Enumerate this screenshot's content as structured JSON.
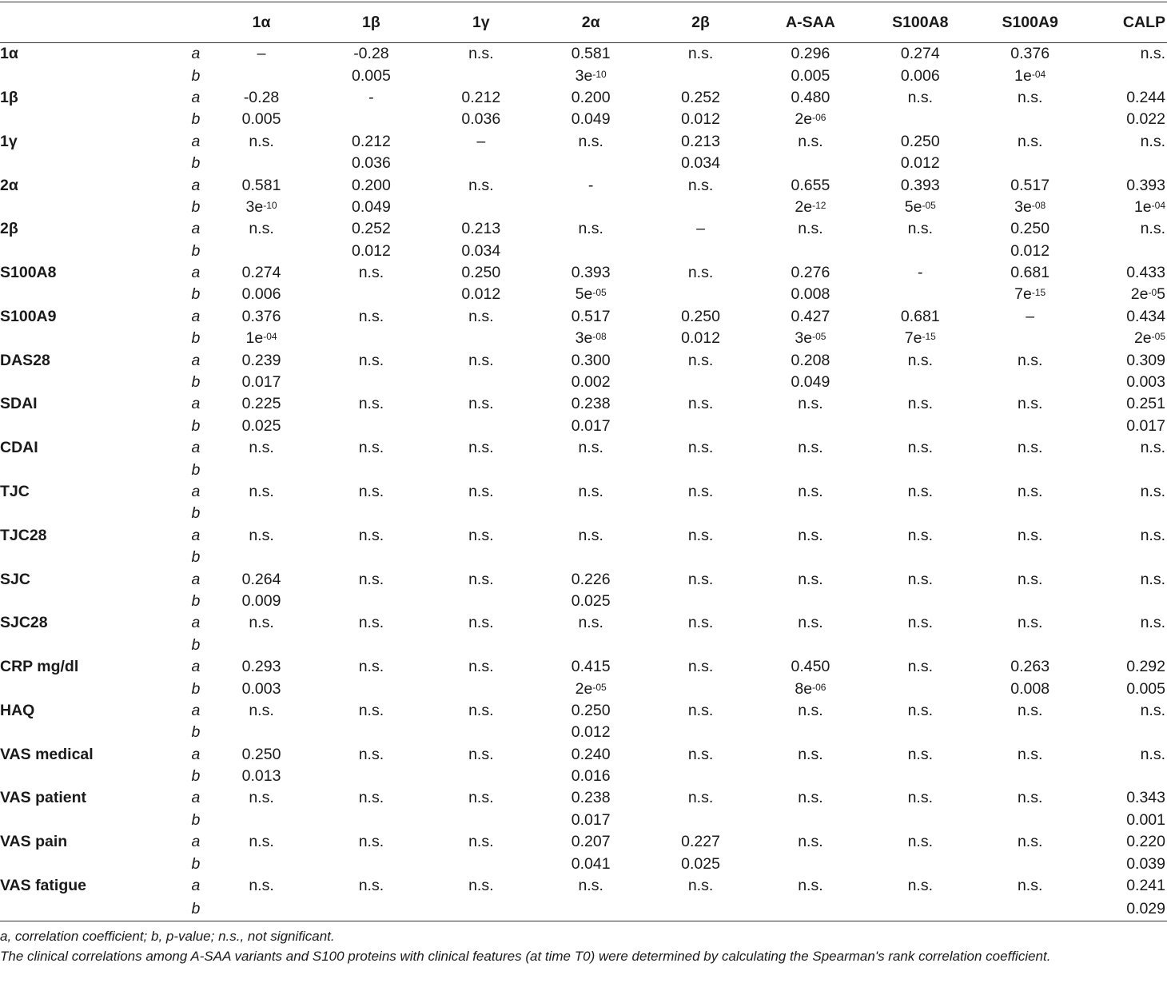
{
  "columns": [
    "1α",
    "1β",
    "1γ",
    "2α",
    "2β",
    "A-SAA",
    "S100A8",
    "S100A9",
    "CALP"
  ],
  "row_sub_labels": {
    "a": "a",
    "b": "b"
  },
  "rows": [
    {
      "label": "1α",
      "a": [
        "–",
        "-0.28",
        "n.s.",
        "0.581",
        "n.s.",
        "0.296",
        "0.274",
        "0.376",
        "n.s."
      ],
      "b": [
        {
          "v": ""
        },
        {
          "v": "0.005"
        },
        {
          "v": ""
        },
        {
          "v": "3e",
          "sup": "-10"
        },
        {
          "v": ""
        },
        {
          "v": "0.005"
        },
        {
          "v": "0.006"
        },
        {
          "v": "1e",
          "sup": "-04"
        },
        {
          "v": ""
        }
      ]
    },
    {
      "label": "1β",
      "a": [
        "-0.28",
        "-",
        "0.212",
        "0.200",
        "0.252",
        "0.480",
        "n.s.",
        "n.s.",
        "0.244"
      ],
      "b": [
        {
          "v": "0.005"
        },
        {
          "v": ""
        },
        {
          "v": "0.036"
        },
        {
          "v": "0.049"
        },
        {
          "v": "0.012"
        },
        {
          "v": "2e",
          "sup": "-06"
        },
        {
          "v": ""
        },
        {
          "v": ""
        },
        {
          "v": "0.022"
        }
      ]
    },
    {
      "label": "1γ",
      "a": [
        "n.s.",
        "0.212",
        "–",
        "n.s.",
        "0.213",
        "n.s.",
        "0.250",
        "n.s.",
        "n.s."
      ],
      "b": [
        {
          "v": ""
        },
        {
          "v": "0.036"
        },
        {
          "v": ""
        },
        {
          "v": ""
        },
        {
          "v": "0.034"
        },
        {
          "v": ""
        },
        {
          "v": "0.012"
        },
        {
          "v": ""
        },
        {
          "v": ""
        }
      ]
    },
    {
      "label": "2α",
      "a": [
        "0.581",
        "0.200",
        "n.s.",
        "-",
        "n.s.",
        "0.655",
        "0.393",
        "0.517",
        "0.393"
      ],
      "b": [
        {
          "v": "3e",
          "sup": "-10"
        },
        {
          "v": "0.049"
        },
        {
          "v": ""
        },
        {
          "v": ""
        },
        {
          "v": ""
        },
        {
          "v": "2e",
          "sup": "-12"
        },
        {
          "v": "5e",
          "sup": "-05"
        },
        {
          "v": "3e",
          "sup": "-08"
        },
        {
          "v": "1e",
          "sup": "-04"
        }
      ]
    },
    {
      "label": "2β",
      "a": [
        "n.s.",
        "0.252",
        "0.213",
        "n.s.",
        "–",
        "n.s.",
        "n.s.",
        "0.250",
        "n.s."
      ],
      "b": [
        {
          "v": ""
        },
        {
          "v": "0.012"
        },
        {
          "v": "0.034"
        },
        {
          "v": ""
        },
        {
          "v": ""
        },
        {
          "v": ""
        },
        {
          "v": ""
        },
        {
          "v": "0.012"
        },
        {
          "v": ""
        }
      ]
    },
    {
      "label": "S100A8",
      "a": [
        "0.274",
        "n.s.",
        "0.250",
        "0.393",
        "n.s.",
        "0.276",
        "-",
        "0.681",
        "0.433"
      ],
      "b": [
        {
          "v": "0.006"
        },
        {
          "v": ""
        },
        {
          "v": "0.012"
        },
        {
          "v": "5e",
          "sup": "-05"
        },
        {
          "v": ""
        },
        {
          "v": "0.008"
        },
        {
          "v": ""
        },
        {
          "v": "7e",
          "sup": "-15"
        },
        {
          "v": "2e",
          "sup": "-0",
          "tail": "5"
        }
      ]
    },
    {
      "label": "S100A9",
      "a": [
        "0.376",
        "n.s.",
        "n.s.",
        "0.517",
        "0.250",
        "0.427",
        "0.681",
        "–",
        "0.434"
      ],
      "b": [
        {
          "v": "1e",
          "sup": "-04"
        },
        {
          "v": ""
        },
        {
          "v": ""
        },
        {
          "v": "3e",
          "sup": "-08"
        },
        {
          "v": "0.012"
        },
        {
          "v": "3e",
          "sup": "-05"
        },
        {
          "v": "7e",
          "sup": "-15"
        },
        {
          "v": ""
        },
        {
          "v": "2e",
          "sup": "-05"
        }
      ]
    },
    {
      "label": "DAS28",
      "a": [
        "0.239",
        "n.s.",
        "n.s.",
        "0.300",
        "n.s.",
        "0.208",
        "n.s.",
        "n.s.",
        "0.309"
      ],
      "b": [
        {
          "v": "0.017"
        },
        {
          "v": ""
        },
        {
          "v": ""
        },
        {
          "v": "0.002"
        },
        {
          "v": ""
        },
        {
          "v": "0.049"
        },
        {
          "v": ""
        },
        {
          "v": ""
        },
        {
          "v": "0.003"
        }
      ]
    },
    {
      "label": "SDAI",
      "a": [
        "0.225",
        "n.s.",
        "n.s.",
        "0.238",
        "n.s.",
        "n.s.",
        "n.s.",
        "n.s.",
        "0.251"
      ],
      "b": [
        {
          "v": "0.025"
        },
        {
          "v": ""
        },
        {
          "v": ""
        },
        {
          "v": "0.017"
        },
        {
          "v": ""
        },
        {
          "v": ""
        },
        {
          "v": ""
        },
        {
          "v": ""
        },
        {
          "v": "0.017"
        }
      ]
    },
    {
      "label": "CDAI",
      "a": [
        "n.s.",
        "n.s.",
        "n.s.",
        "n.s.",
        "n.s.",
        "n.s.",
        "n.s.",
        "n.s.",
        "n.s."
      ],
      "b": [
        {
          "v": ""
        },
        {
          "v": ""
        },
        {
          "v": ""
        },
        {
          "v": ""
        },
        {
          "v": ""
        },
        {
          "v": ""
        },
        {
          "v": ""
        },
        {
          "v": ""
        },
        {
          "v": ""
        }
      ]
    },
    {
      "label": "TJC",
      "a": [
        "n.s.",
        "n.s.",
        "n.s.",
        "n.s.",
        "n.s.",
        "n.s.",
        "n.s.",
        "n.s.",
        "n.s."
      ],
      "b": [
        {
          "v": ""
        },
        {
          "v": ""
        },
        {
          "v": ""
        },
        {
          "v": ""
        },
        {
          "v": ""
        },
        {
          "v": ""
        },
        {
          "v": ""
        },
        {
          "v": ""
        },
        {
          "v": ""
        }
      ]
    },
    {
      "label": "TJC28",
      "a": [
        "n.s.",
        "n.s.",
        "n.s.",
        "n.s.",
        "n.s.",
        "n.s.",
        "n.s.",
        "n.s.",
        "n.s."
      ],
      "b": [
        {
          "v": ""
        },
        {
          "v": ""
        },
        {
          "v": ""
        },
        {
          "v": ""
        },
        {
          "v": ""
        },
        {
          "v": ""
        },
        {
          "v": ""
        },
        {
          "v": ""
        },
        {
          "v": ""
        }
      ]
    },
    {
      "label": "SJC",
      "a": [
        "0.264",
        "n.s.",
        "n.s.",
        "0.226",
        "n.s.",
        "n.s.",
        "n.s.",
        "n.s.",
        "n.s."
      ],
      "b": [
        {
          "v": "0.009"
        },
        {
          "v": ""
        },
        {
          "v": ""
        },
        {
          "v": "0.025"
        },
        {
          "v": ""
        },
        {
          "v": ""
        },
        {
          "v": ""
        },
        {
          "v": ""
        },
        {
          "v": ""
        }
      ]
    },
    {
      "label": "SJC28",
      "a": [
        "n.s.",
        "n.s.",
        "n.s.",
        "n.s.",
        "n.s.",
        "n.s.",
        "n.s.",
        "n.s.",
        "n.s."
      ],
      "b": [
        {
          "v": ""
        },
        {
          "v": ""
        },
        {
          "v": ""
        },
        {
          "v": ""
        },
        {
          "v": ""
        },
        {
          "v": ""
        },
        {
          "v": ""
        },
        {
          "v": ""
        },
        {
          "v": ""
        }
      ]
    },
    {
      "label": "CRP mg/dl",
      "a": [
        "0.293",
        "n.s.",
        "n.s.",
        "0.415",
        "n.s.",
        "0.450",
        "n.s.",
        "0.263",
        "0.292"
      ],
      "b": [
        {
          "v": "0.003"
        },
        {
          "v": ""
        },
        {
          "v": ""
        },
        {
          "v": "2e",
          "sup": "-05"
        },
        {
          "v": ""
        },
        {
          "v": "8e",
          "sup": "-06"
        },
        {
          "v": ""
        },
        {
          "v": "0.008"
        },
        {
          "v": "0.005"
        }
      ]
    },
    {
      "label": "HAQ",
      "a": [
        "n.s.",
        "n.s.",
        "n.s.",
        "0.250",
        "n.s.",
        "n.s.",
        "n.s.",
        "n.s.",
        "n.s."
      ],
      "b": [
        {
          "v": ""
        },
        {
          "v": ""
        },
        {
          "v": ""
        },
        {
          "v": "0.012"
        },
        {
          "v": ""
        },
        {
          "v": ""
        },
        {
          "v": ""
        },
        {
          "v": ""
        },
        {
          "v": ""
        }
      ]
    },
    {
      "label": "VAS medical",
      "a": [
        "0.250",
        "n.s.",
        "n.s.",
        "0.240",
        "n.s.",
        "n.s.",
        "n.s.",
        "n.s.",
        "n.s."
      ],
      "b": [
        {
          "v": "0.013"
        },
        {
          "v": ""
        },
        {
          "v": ""
        },
        {
          "v": "0.016"
        },
        {
          "v": ""
        },
        {
          "v": ""
        },
        {
          "v": ""
        },
        {
          "v": ""
        },
        {
          "v": ""
        }
      ]
    },
    {
      "label": "VAS patient",
      "a": [
        "n.s.",
        "n.s.",
        "n.s.",
        "0.238",
        "n.s.",
        "n.s.",
        "n.s.",
        "n.s.",
        "0.343"
      ],
      "b": [
        {
          "v": ""
        },
        {
          "v": ""
        },
        {
          "v": ""
        },
        {
          "v": "0.017"
        },
        {
          "v": ""
        },
        {
          "v": ""
        },
        {
          "v": ""
        },
        {
          "v": ""
        },
        {
          "v": "0.001"
        }
      ]
    },
    {
      "label": "VAS pain",
      "a": [
        "n.s.",
        "n.s.",
        "n.s.",
        "0.207",
        "0.227",
        "n.s.",
        "n.s.",
        "n.s.",
        "0.220"
      ],
      "b": [
        {
          "v": ""
        },
        {
          "v": ""
        },
        {
          "v": ""
        },
        {
          "v": "0.041"
        },
        {
          "v": "0.025"
        },
        {
          "v": ""
        },
        {
          "v": ""
        },
        {
          "v": ""
        },
        {
          "v": "0.039"
        }
      ]
    },
    {
      "label": "VAS fatigue",
      "a": [
        "n.s.",
        "n.s.",
        "n.s.",
        "n.s.",
        "n.s.",
        "n.s.",
        "n.s.",
        "n.s.",
        "0.241"
      ],
      "b": [
        {
          "v": ""
        },
        {
          "v": ""
        },
        {
          "v": ""
        },
        {
          "v": ""
        },
        {
          "v": ""
        },
        {
          "v": ""
        },
        {
          "v": ""
        },
        {
          "v": ""
        },
        {
          "v": "0.029"
        }
      ]
    }
  ],
  "footnotes": [
    "a, correlation coefficient; b, p-value; n.s., not significant.",
    "The clinical correlations among A-SAA variants and S100 proteins with clinical features (at time T0) were determined by calculating the Spearman's rank correlation coefficient."
  ]
}
